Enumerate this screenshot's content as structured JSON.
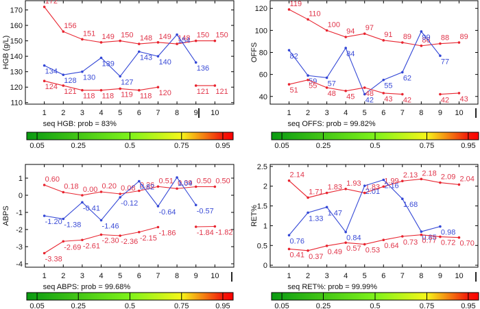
{
  "colors": {
    "upper_lower_series": "#e8242f",
    "patient_series": "#3347d6",
    "label_red": "#e0354a",
    "label_blue": "#3a4bd6",
    "axis": "#000000"
  },
  "colorbar": {
    "ticks": [
      0.05,
      0.25,
      0.5,
      0.75,
      0.95
    ],
    "tick_labels": [
      "0.05",
      "0.25",
      "0.5",
      "0.75",
      "0.95"
    ],
    "gradient_stops": [
      {
        "at": 0.0,
        "color": "#0a9a12"
      },
      {
        "at": 0.5,
        "color": "#7ef21a"
      },
      {
        "at": 0.75,
        "color": "#f6f61a"
      },
      {
        "at": 0.95,
        "color": "#f21a0a"
      },
      {
        "at": 1.0,
        "color": "#ff0000"
      }
    ]
  },
  "chart_data": [
    {
      "type": "line",
      "id": "hgb",
      "title": "",
      "ylabel": "HGB (g/L)",
      "xlabel": "",
      "caption": "seq HGB: prob = 83%",
      "probability": 0.83,
      "x": [
        1,
        2,
        3,
        4,
        5,
        6,
        7,
        8,
        9,
        10
      ],
      "xlim": [
        0,
        11
      ],
      "ylim": [
        109,
        176
      ],
      "yticks": [
        110,
        120,
        130,
        140,
        150,
        160,
        170
      ],
      "ytick_labels": [
        "110",
        "120",
        "130",
        "140",
        "150",
        "160",
        "170"
      ],
      "series": [
        {
          "name": "upper",
          "color_key": "red",
          "values": [
            172,
            156,
            151,
            149,
            150,
            148,
            149,
            148,
            150,
            150
          ],
          "labels": [
            "172",
            "156",
            "151",
            "149",
            "150",
            "148",
            "149",
            "148",
            "150",
            "150"
          ]
        },
        {
          "name": "patient",
          "color_key": "blue",
          "values": [
            134,
            128,
            130,
            139,
            127,
            143,
            140,
            154,
            136,
            null
          ],
          "labels": [
            "134",
            "128",
            "130",
            "139",
            "127",
            "143",
            "140",
            "154",
            "136",
            ""
          ]
        },
        {
          "name": "lower",
          "color_key": "red",
          "values": [
            124,
            121,
            118,
            118,
            119,
            118,
            120,
            null,
            121,
            121
          ],
          "labels": [
            "124",
            "121",
            "118",
            "118",
            "119",
            "118",
            "120",
            "",
            "121",
            "121"
          ]
        }
      ],
      "marker_label": "I"
    },
    {
      "type": "line",
      "id": "offs",
      "title": "",
      "ylabel": "OFFS",
      "xlabel": "",
      "caption": "seq OFFS: prob = 99.82%",
      "probability": 0.9982,
      "x": [
        1,
        2,
        3,
        4,
        5,
        6,
        7,
        8,
        9,
        10
      ],
      "xlim": [
        0,
        11
      ],
      "ylim": [
        33,
        127
      ],
      "yticks": [
        40,
        60,
        80,
        100,
        120
      ],
      "ytick_labels": [
        "40",
        "60",
        "80",
        "100",
        "120"
      ],
      "series": [
        {
          "name": "upper",
          "color_key": "red",
          "values": [
            119,
            110,
            100,
            94,
            97,
            91,
            89,
            86,
            88,
            89
          ],
          "labels": [
            "119",
            "110",
            "100",
            "94",
            "97",
            "91",
            "89",
            "86",
            "88",
            "89"
          ]
        },
        {
          "name": "patient",
          "color_key": "blue",
          "values": [
            82,
            59,
            57,
            84,
            42,
            55,
            62,
            99,
            77,
            null
          ],
          "labels": [
            "82",
            "59",
            "57",
            "84",
            "42",
            "55",
            "62",
            "99",
            "77",
            ""
          ]
        },
        {
          "name": "lower",
          "color_key": "red",
          "values": [
            51,
            55,
            48,
            45,
            48,
            43,
            42,
            null,
            42,
            43
          ],
          "labels": [
            "51",
            "55",
            "48",
            "45",
            "48",
            "43",
            "42",
            "",
            "42",
            "43"
          ]
        }
      ],
      "marker_label": "I"
    },
    {
      "type": "line",
      "id": "abps",
      "title": "",
      "ylabel": "ABPS",
      "xlabel": "",
      "caption": "seq ABPS: prob = 99.68%",
      "probability": 0.9968,
      "x": [
        1,
        2,
        3,
        4,
        5,
        6,
        7,
        8,
        9,
        10
      ],
      "xlim": [
        0,
        11
      ],
      "ylim": [
        -4.2,
        1.8
      ],
      "yticks": [
        -4,
        -3,
        -2,
        -1,
        0,
        1
      ],
      "ytick_labels": [
        "-4",
        "-3",
        "-2",
        "-1",
        "0",
        "1"
      ],
      "series": [
        {
          "name": "upper",
          "color_key": "red",
          "values": [
            0.6,
            0.18,
            0.0,
            0.2,
            0.08,
            0.26,
            0.51,
            0.39,
            0.5,
            0.5
          ],
          "labels": [
            "0.60",
            "0.18",
            "0.00",
            "0.20",
            "0.08",
            "0.26",
            "0.51",
            "0.39",
            "0.50",
            "0.50"
          ]
        },
        {
          "name": "patient",
          "color_key": "blue",
          "values": [
            -1.2,
            -1.38,
            -0.41,
            -1.46,
            -0.12,
            0.82,
            -0.64,
            1.04,
            -0.57,
            null
          ],
          "labels": [
            "-1.20",
            "-1.38",
            "-0.41",
            "-1.46",
            "-0.12",
            "0.82",
            "-0.64",
            "1.04",
            "-0.57",
            ""
          ]
        },
        {
          "name": "lower",
          "color_key": "red",
          "values": [
            -3.38,
            -2.69,
            -2.61,
            -2.3,
            -2.36,
            -2.15,
            -1.86,
            null,
            -1.84,
            -1.82
          ],
          "labels": [
            "-3.38",
            "-2.69",
            "-2.61",
            "-2.30",
            "-2.36",
            "-2.15",
            "-1.86",
            "",
            "-1.84",
            "-1.82"
          ]
        }
      ],
      "marker_label": "I"
    },
    {
      "type": "line",
      "id": "ret",
      "title": "",
      "ylabel": "RET%",
      "xlabel": "",
      "caption": "seq RET%: prob = 99.99%",
      "probability": 0.9999,
      "x": [
        1,
        2,
        3,
        4,
        5,
        6,
        7,
        8,
        9,
        10
      ],
      "xlim": [
        0,
        11
      ],
      "ylim": [
        -0.05,
        2.55
      ],
      "yticks": [
        0,
        0.5,
        1,
        1.5,
        2,
        2.5
      ],
      "ytick_labels": [
        "0",
        "0.5",
        "1",
        "1.5",
        "2",
        "2.5"
      ],
      "series": [
        {
          "name": "upper",
          "color_key": "red",
          "values": [
            2.14,
            1.71,
            1.83,
            1.93,
            1.83,
            1.99,
            2.13,
            2.18,
            2.09,
            2.04
          ],
          "labels": [
            "2.14",
            "1.71",
            "1.83",
            "1.93",
            "1.83",
            "1.99",
            "2.13",
            "2.18",
            "2.09",
            "2.04"
          ]
        },
        {
          "name": "patient",
          "color_key": "blue",
          "values": [
            0.76,
            1.33,
            1.47,
            0.84,
            2.01,
            2.16,
            1.68,
            0.85,
            0.98,
            null
          ],
          "labels": [
            "0.76",
            "1.33",
            "1.47",
            "0.84",
            "2.01",
            "2.16",
            "1.68",
            "0.85",
            "0.98",
            ""
          ]
        },
        {
          "name": "lower",
          "color_key": "red",
          "values": [
            0.41,
            0.37,
            0.49,
            0.57,
            0.53,
            0.64,
            0.73,
            0.77,
            0.72,
            0.7
          ],
          "labels": [
            "0.41",
            "0.37",
            "0.49",
            "0.57",
            "0.53",
            "0.64",
            "0.73",
            "0.77",
            "0.72",
            "0.70"
          ]
        }
      ],
      "marker_label": "I"
    }
  ]
}
